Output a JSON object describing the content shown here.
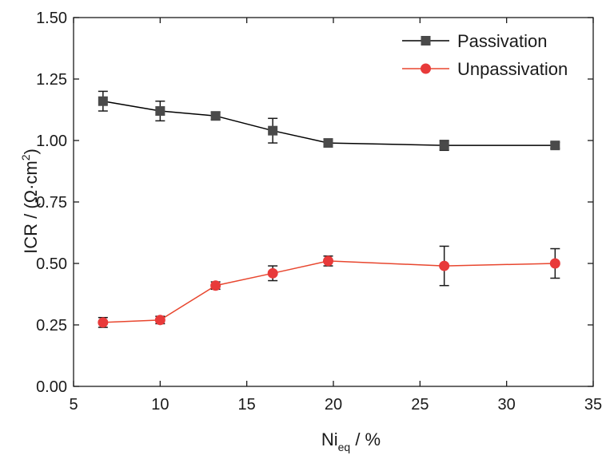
{
  "chart_data": {
    "type": "line",
    "xlabel": {
      "main": "Ni",
      "sub": "eq",
      "rest": " / %"
    },
    "ylabel": {
      "main": "ICR / (Ω·cm",
      "sup": "2",
      "close": ")"
    },
    "xlim": [
      5,
      35
    ],
    "ylim": [
      0,
      1.5
    ],
    "xticks": [
      "5",
      "10",
      "15",
      "20",
      "25",
      "30",
      "35"
    ],
    "yticks": [
      "0.00",
      "0.25",
      "0.50",
      "0.75",
      "1.00",
      "1.25",
      "1.50"
    ],
    "grid": false,
    "legend_position": "top-right",
    "x": [
      6.7,
      10.0,
      13.2,
      16.5,
      19.7,
      26.4,
      32.8
    ],
    "series": [
      {
        "name": "Passivation",
        "color": "#000000",
        "marker_color": "#4a4a4a",
        "marker": "square",
        "values": [
          1.16,
          1.12,
          1.1,
          1.04,
          0.99,
          0.98,
          0.98
        ],
        "errors": [
          0.04,
          0.04,
          0.015,
          0.05,
          0.012,
          0.02,
          0.012
        ]
      },
      {
        "name": "Unpassivation",
        "color": "#e8462e",
        "marker_color": "#e83a3a",
        "marker": "circle",
        "values": [
          0.26,
          0.27,
          0.41,
          0.46,
          0.51,
          0.49,
          0.5
        ],
        "errors": [
          0.02,
          0.015,
          0.015,
          0.03,
          0.02,
          0.08,
          0.06
        ]
      }
    ]
  }
}
